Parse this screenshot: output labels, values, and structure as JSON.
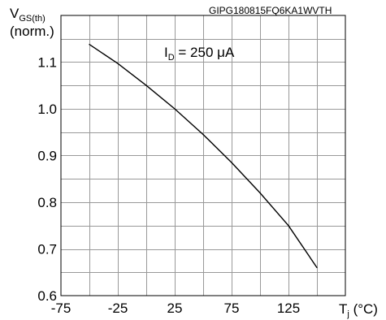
{
  "figure_id": "GIPG180815FQ6KA1WVTH",
  "chart_data": {
    "type": "line",
    "xlabel": {
      "main": "T",
      "sub": "j",
      "unit": " (°C)"
    },
    "ylabel": {
      "main": "V",
      "sub": "GS(th)",
      "line2": "(norm.)"
    },
    "annotation": {
      "main": "I",
      "sub": "D",
      "rest": " = 250 μA"
    },
    "xlim": [
      -75,
      175
    ],
    "ylim": [
      0.6,
      1.2
    ],
    "x_ticks": [
      -75,
      -25,
      25,
      75,
      125
    ],
    "x_tick_labels": [
      "-75",
      "-25",
      "25",
      "75",
      "125"
    ],
    "y_ticks": [
      0.6,
      0.7,
      0.8,
      0.9,
      1.0,
      1.1
    ],
    "y_tick_labels": [
      "0.6",
      "0.7",
      "0.8",
      "0.9",
      "1.0",
      "1.1"
    ],
    "grid": true,
    "series": [
      {
        "x": [
          -50,
          -25,
          0,
          25,
          50,
          75,
          100,
          125,
          150
        ],
        "values": [
          1.138,
          1.097,
          1.05,
          1.0,
          0.945,
          0.885,
          0.82,
          0.75,
          0.66
        ]
      }
    ]
  }
}
